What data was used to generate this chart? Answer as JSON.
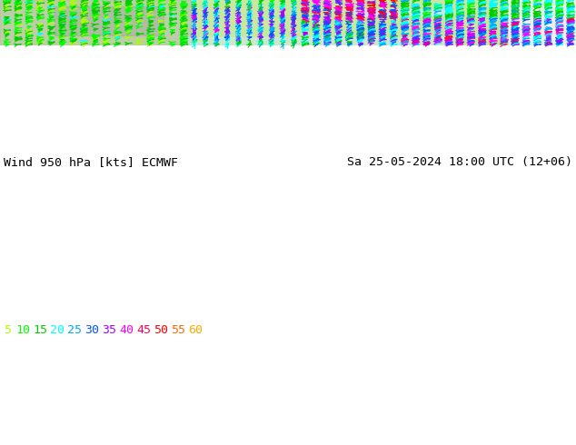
{
  "title_left": "Wind 950 hPa [kts] ECMWF",
  "title_right": "Sa 25-05-2024 18:00 UTC (12+06)",
  "legend_values": [
    "5",
    "10",
    "15",
    "20",
    "25",
    "30",
    "35",
    "40",
    "45",
    "50",
    "55",
    "60"
  ],
  "legend_colors": [
    "#aaff00",
    "#00ff00",
    "#00cc00",
    "#00ffff",
    "#00aaff",
    "#0055ff",
    "#aa00ff",
    "#ff00ff",
    "#ff0055",
    "#ff0000",
    "#ff6600",
    "#ffaa00"
  ],
  "bg_color": "#ffffff",
  "map_bg": "#c8e8a0",
  "fig_width": 6.34,
  "fig_height": 4.9,
  "dpi": 100,
  "bottom_bar_color": "#ffffff",
  "bottom_bar_height": 50,
  "wind_speed_colors": {
    "5": "#aaff00",
    "10": "#00ff00",
    "15": "#00cc00",
    "20": "#00ffff",
    "25": "#00aaff",
    "30": "#0055ff",
    "35": "#aa00ff",
    "40": "#ff00ff",
    "45": "#ff0055",
    "50": "#ff0000",
    "55": "#ff6600",
    "60": "#ffaa00"
  }
}
